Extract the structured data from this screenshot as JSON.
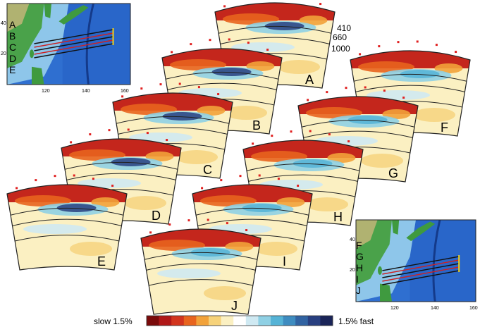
{
  "maps": [
    {
      "id": "map-top",
      "lat_labels": [
        "40",
        "20"
      ],
      "lon_labels": [
        "120",
        "140",
        "160"
      ],
      "profile_labels": [
        "A",
        "B",
        "C",
        "D",
        "E"
      ]
    },
    {
      "id": "map-bottom",
      "lat_labels": [
        "40",
        "20"
      ],
      "lon_labels": [
        "120",
        "140",
        "160"
      ],
      "profile_labels": [
        "F",
        "G",
        "H",
        "I",
        "J"
      ]
    }
  ],
  "depth_labels": [
    "410",
    "660",
    "1000"
  ],
  "sections": [
    {
      "label": "A"
    },
    {
      "label": "B"
    },
    {
      "label": "C"
    },
    {
      "label": "D"
    },
    {
      "label": "E"
    },
    {
      "label": "F"
    },
    {
      "label": "G"
    },
    {
      "label": "H"
    },
    {
      "label": "I"
    },
    {
      "label": "J"
    }
  ],
  "colorbar": {
    "left_label": "slow 1.5%",
    "right_label": "1.5% fast",
    "colors": [
      "#7a0a0a",
      "#b01818",
      "#d2341e",
      "#e8641e",
      "#f2a23a",
      "#f6d27a",
      "#fbf0c2",
      "#ffffff",
      "#cfe9f2",
      "#8fd0e4",
      "#55b3d6",
      "#3e8cc0",
      "#3163a2",
      "#283f80",
      "#1a2458"
    ]
  }
}
